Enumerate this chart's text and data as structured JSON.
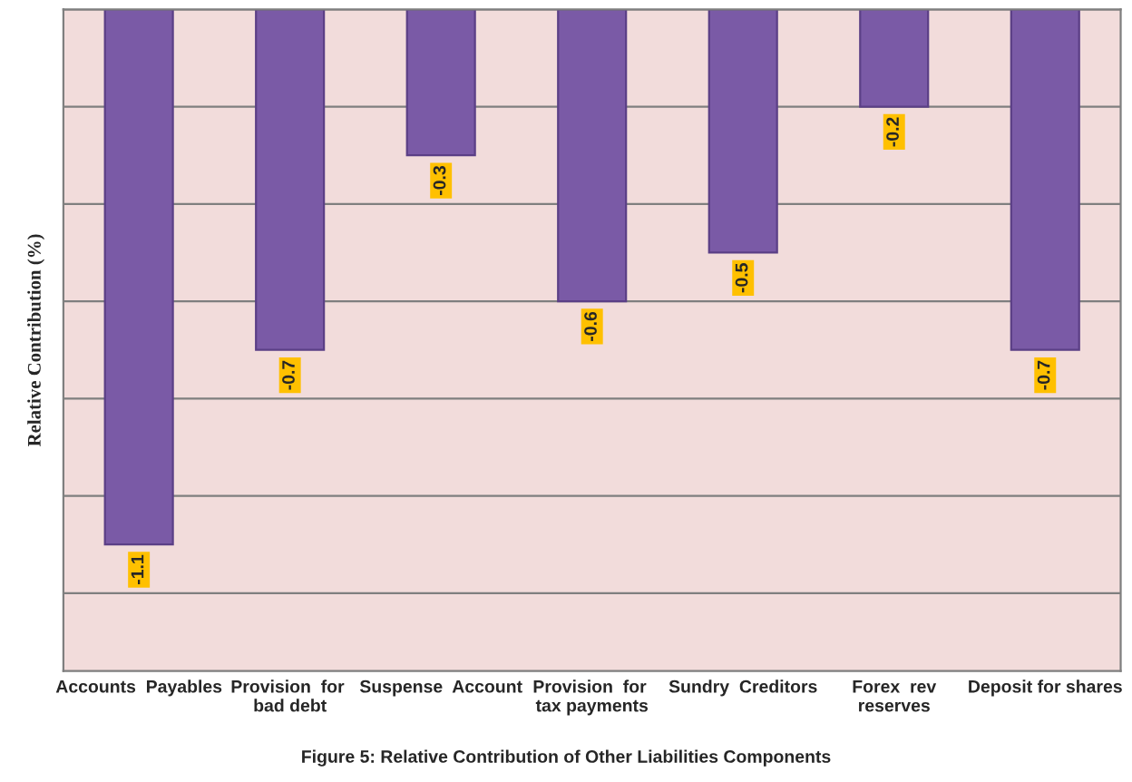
{
  "chart_data": {
    "type": "bar",
    "categories": [
      "Accounts  Payables",
      "Provision  for  bad debt",
      "Suspense  Account",
      "Provision  for  tax payments",
      "Sundry  Creditors",
      "Forex  rev reserves",
      "Deposit for shares"
    ],
    "values": [
      -1.1,
      -0.7,
      -0.3,
      -0.6,
      -0.5,
      -0.2,
      -0.7
    ],
    "color": "#7a5aa6",
    "ylabel": "Relative Contribution (%)",
    "ylim": [
      -1.36,
      0
    ],
    "yticks": [
      {
        "value": 0,
        "label": null
      },
      {
        "value": -0.2,
        "label": null
      },
      {
        "value": -0.4,
        "label": null
      },
      {
        "value": -0.6,
        "label": null
      },
      {
        "value": -0.8,
        "label": null
      },
      {
        "value": -1.0,
        "label": null
      },
      {
        "value": -1.2,
        "label": null
      }
    ],
    "grid": "y",
    "data_labels": true,
    "annotations": [
      "Figure 5: Relative Contribution of Other Liabilities Components"
    ]
  }
}
